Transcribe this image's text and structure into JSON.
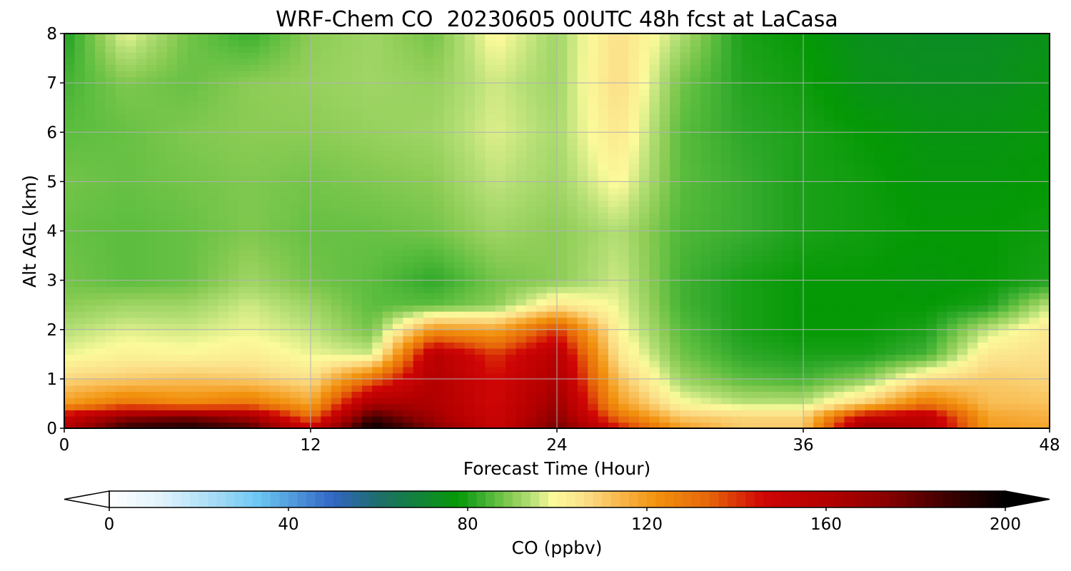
{
  "chart_data": {
    "type": "heatmap",
    "title": "WRF-Chem CO  20230605 00UTC 48h fcst at LaCasa",
    "xlabel": "Forecast Time (Hour)",
    "ylabel": "Alt AGL (km)",
    "xlim": [
      0,
      48
    ],
    "ylim": [
      0,
      8
    ],
    "x_ticks": [
      0,
      12,
      24,
      36,
      48
    ],
    "y_ticks": [
      0,
      1,
      2,
      3,
      4,
      5,
      6,
      7,
      8
    ],
    "grid": true,
    "x": [
      0,
      3,
      6,
      9,
      12,
      15,
      18,
      21,
      24,
      27,
      30,
      33,
      36,
      39,
      42,
      45,
      48
    ],
    "y": [
      0,
      0.25,
      0.5,
      1,
      1.5,
      2,
      2.5,
      3,
      4,
      5,
      6,
      7,
      8
    ],
    "z": [
      [
        160,
        190,
        195,
        185,
        150,
        200,
        175,
        150,
        178,
        145,
        120,
        110,
        110,
        170,
        160,
        120,
        118
      ],
      [
        150,
        170,
        175,
        165,
        130,
        185,
        165,
        148,
        172,
        130,
        110,
        108,
        108,
        150,
        155,
        118,
        115
      ],
      [
        120,
        130,
        125,
        130,
        118,
        165,
        162,
        146,
        168,
        120,
        100,
        95,
        95,
        110,
        130,
        113,
        112
      ],
      [
        108,
        110,
        112,
        110,
        106,
        132,
        160,
        145,
        162,
        112,
        92,
        86,
        84,
        90,
        106,
        110,
        108
      ],
      [
        98,
        101,
        100,
        102,
        98,
        96,
        158,
        140,
        158,
        104,
        88,
        82,
        80,
        80,
        84,
        104,
        106
      ],
      [
        94,
        97,
        96,
        98,
        95,
        88,
        122,
        118,
        140,
        100,
        86,
        80,
        78,
        78,
        80,
        95,
        104
      ],
      [
        90,
        92,
        92,
        96,
        92,
        86,
        86,
        90,
        104,
        98,
        84,
        80,
        78,
        78,
        78,
        80,
        95
      ],
      [
        88,
        86,
        87,
        92,
        88,
        86,
        82,
        88,
        90,
        96,
        84,
        80,
        78,
        78,
        77,
        78,
        80
      ],
      [
        87,
        86,
        87,
        89,
        87,
        87,
        88,
        92,
        90,
        94,
        85,
        83,
        80,
        79,
        78,
        78,
        79
      ],
      [
        88,
        87,
        88,
        89,
        88,
        89,
        90,
        95,
        92,
        100,
        86,
        83,
        80,
        79,
        77,
        77,
        78
      ],
      [
        86,
        87,
        89,
        90,
        90,
        91,
        92,
        97,
        93,
        104,
        86,
        82,
        80,
        78,
        76,
        76,
        77
      ],
      [
        84,
        89,
        87,
        90,
        91,
        92,
        91,
        96,
        92,
        107,
        88,
        81,
        79,
        75,
        74,
        74,
        76
      ],
      [
        80,
        98,
        88,
        83,
        90,
        92,
        88,
        100,
        92,
        106,
        94,
        80,
        78,
        74,
        73,
        73,
        75
      ]
    ],
    "colorbar": {
      "label": "CO  (ppbv)",
      "ticks": [
        0,
        40,
        80,
        120,
        160,
        200
      ],
      "range": [
        0,
        200
      ],
      "extend": "both",
      "orientation": "horizontal"
    }
  }
}
